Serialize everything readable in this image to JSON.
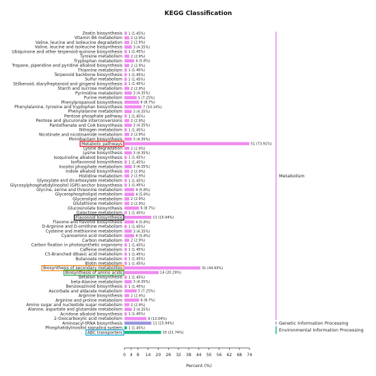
{
  "chart_data": {
    "type": "bar",
    "orientation": "horizontal",
    "title": "KEGG Classification",
    "xlabel": "Percent (%)",
    "ylabel": "",
    "xlim": [
      0,
      74
    ],
    "xticks": [
      0,
      4,
      8,
      14,
      20,
      26,
      32,
      38,
      44,
      50,
      56,
      62,
      68,
      74
    ],
    "grid": false,
    "legend_position": "right",
    "colors": {
      "Metabolism": "#f08cf0",
      "Genetic Information Processing": "#9a96dc",
      "Environmental Information Processing": "#1fba8e"
    },
    "highlight_colors": {
      "red": "#e02020",
      "black": "#111111",
      "orange": "#f08a1c",
      "green": "#2aa84a",
      "cyan": "#1aa8d8"
    },
    "categories": [
      {
        "name": "Zeatin biosynthesis",
        "percent": 1.45,
        "label": "1 (1.45%)",
        "group": "Metabolism"
      },
      {
        "name": "Vitamin B6 metabolism",
        "percent": 2.9,
        "label": "2 (2.9%)",
        "group": "Metabolism"
      },
      {
        "name": "Valine, leucine and isoleucine degradation",
        "percent": 2.9,
        "label": "2 (2.9%)",
        "group": "Metabolism"
      },
      {
        "name": "Valine, leucine and isoleucine biosynthesis",
        "percent": 4.35,
        "label": "3 (4.35%)",
        "group": "Metabolism"
      },
      {
        "name": "Ubiquinone and other terpenoid-quinone biosynthesis",
        "percent": 1.45,
        "label": "1 (1.45%)",
        "group": "Metabolism"
      },
      {
        "name": "Tyrosine metabolism",
        "percent": 2.9,
        "label": "2 (2.9%)",
        "group": "Metabolism"
      },
      {
        "name": "Tryptophan metabolism",
        "percent": 5.8,
        "label": "4 (5.8%)",
        "group": "Metabolism"
      },
      {
        "name": "Tropane, piperidine and pyridine alkaloid biosynthesis",
        "percent": 2.9,
        "label": "2 (2.9%)",
        "group": "Metabolism"
      },
      {
        "name": "Thiamine metabolism",
        "percent": 1.45,
        "label": "1 (1.45%)",
        "group": "Metabolism"
      },
      {
        "name": "Terpenoid backbone biosynthesis",
        "percent": 1.45,
        "label": "1 (1.45%)",
        "group": "Metabolism"
      },
      {
        "name": "Sulfur metabolism",
        "percent": 1.45,
        "label": "1 (1.45%)",
        "group": "Metabolism"
      },
      {
        "name": "Stilbenoid, diarylheptanoid and gingerol biosynthesis",
        "percent": 1.45,
        "label": "1 (1.45%)",
        "group": "Metabolism"
      },
      {
        "name": "Starch and sucrose metabolism",
        "percent": 2.9,
        "label": "2 (2.9%)",
        "group": "Metabolism"
      },
      {
        "name": "Pyrimidine metabolism",
        "percent": 4.35,
        "label": "3 (4.35%)",
        "group": "Metabolism"
      },
      {
        "name": "Purine metabolism",
        "percent": 7.25,
        "label": "5 (7.25%)",
        "group": "Metabolism"
      },
      {
        "name": "Phenylpropanoid biosynthesis",
        "percent": 8.7,
        "label": "6 (8.7%)",
        "group": "Metabolism"
      },
      {
        "name": "Phenylalanine, tyrosine and tryptophan biosynthesis",
        "percent": 10.14,
        "label": "7 (10.14%)",
        "group": "Metabolism"
      },
      {
        "name": "Phenylalanine metabolism",
        "percent": 4.35,
        "label": "3 (4.35%)",
        "group": "Metabolism"
      },
      {
        "name": "Pentose phosphate pathway",
        "percent": 1.45,
        "label": "1 (1.45%)",
        "group": "Metabolism"
      },
      {
        "name": "Pentose and glucuronate interconversions",
        "percent": 2.9,
        "label": "2 (2.9%)",
        "group": "Metabolism"
      },
      {
        "name": "Pantothenate and CoA biosynthesis",
        "percent": 4.35,
        "label": "3 (4.35%)",
        "group": "Metabolism"
      },
      {
        "name": "Nitrogen metabolism",
        "percent": 1.45,
        "label": "1 (1.45%)",
        "group": "Metabolism"
      },
      {
        "name": "Nicotinate and nicotinamide metabolism",
        "percent": 2.9,
        "label": "2 (2.9%)",
        "group": "Metabolism"
      },
      {
        "name": "Monobactam biosynthesis",
        "percent": 4.35,
        "label": "3 (4.35%)",
        "group": "Metabolism"
      },
      {
        "name": "Metabolic pathways",
        "percent": 73.91,
        "label": "51 (73.91%)",
        "group": "Metabolism",
        "highlight": "red"
      },
      {
        "name": "Lysine degradation",
        "percent": 2.9,
        "label": "2 (2.9%)",
        "group": "Metabolism"
      },
      {
        "name": "Lysine biosynthesis",
        "percent": 4.35,
        "label": "3 (4.35%)",
        "group": "Metabolism"
      },
      {
        "name": "Isoquinoline alkaloid biosynthesis",
        "percent": 1.45,
        "label": "1 (1.45%)",
        "group": "Metabolism"
      },
      {
        "name": "Isoflavonoid biosynthesis",
        "percent": 1.45,
        "label": "1 (1.45%)",
        "group": "Metabolism"
      },
      {
        "name": "Inositol phosphate metabolism",
        "percent": 4.35,
        "label": "3 (4.35%)",
        "group": "Metabolism"
      },
      {
        "name": "Indole alkaloid biosynthesis",
        "percent": 2.9,
        "label": "2 (2.9%)",
        "group": "Metabolism"
      },
      {
        "name": "Histidine metabolism",
        "percent": 2.9,
        "label": "2 (2.9%)",
        "group": "Metabolism"
      },
      {
        "name": "Glyoxylate and dicarboxylate metabolism",
        "percent": 1.45,
        "label": "1 (1.45%)",
        "group": "Metabolism"
      },
      {
        "name": "Glycosylphosphatidylinositol (GPI)-anchor biosynthesis",
        "percent": 1.45,
        "label": "1 (1.45%)",
        "group": "Metabolism"
      },
      {
        "name": "Glycine, serine and threonine metabolism",
        "percent": 5.8,
        "label": "4 (5.8%)",
        "group": "Metabolism"
      },
      {
        "name": "Glycerophospholipid metabolism",
        "percent": 5.8,
        "label": "4 (5.8%)",
        "group": "Metabolism"
      },
      {
        "name": "Glycerolipid metabolism",
        "percent": 2.9,
        "label": "2 (2.9%)",
        "group": "Metabolism"
      },
      {
        "name": "Glutathione metabolism",
        "percent": 2.9,
        "label": "2 (2.9%)",
        "group": "Metabolism"
      },
      {
        "name": "Glucosinolate biosynthesis",
        "percent": 8.7,
        "label": "6 (8.7%)",
        "group": "Metabolism"
      },
      {
        "name": "Galactose metabolism",
        "percent": 1.45,
        "label": "1 (1.45%)",
        "group": "Metabolism"
      },
      {
        "name": "Flavonoid biosynthesis",
        "percent": 15.94,
        "label": "11 (15.94%)",
        "group": "Metabolism",
        "highlight": "black"
      },
      {
        "name": "Flavone and flavonol biosynthesis",
        "percent": 5.8,
        "label": "4 (5.8%)",
        "group": "Metabolism"
      },
      {
        "name": "D-Arginine and D-ornithine metabolism",
        "percent": 1.45,
        "label": "1 (1.45%)",
        "group": "Metabolism"
      },
      {
        "name": "Cysteine and methionine metabolism",
        "percent": 4.35,
        "label": "3 (4.35%)",
        "group": "Metabolism"
      },
      {
        "name": "Cyanoamino acid metabolism",
        "percent": 5.8,
        "label": "4 (5.8%)",
        "group": "Metabolism"
      },
      {
        "name": "Carbon metabolism",
        "percent": 2.9,
        "label": "2 (2.9%)",
        "group": "Metabolism"
      },
      {
        "name": "Carbon fixation in photosynthetic organisms",
        "percent": 1.45,
        "label": "1 (1.45%)",
        "group": "Metabolism"
      },
      {
        "name": "Caffeine metabolism",
        "percent": 1.45,
        "label": "1 (1.45%)",
        "group": "Metabolism"
      },
      {
        "name": "C5-Branched dibasic acid metabolism",
        "percent": 1.45,
        "label": "1 (1.45%)",
        "group": "Metabolism"
      },
      {
        "name": "Butanoate metabolism",
        "percent": 1.45,
        "label": "1 (1.45%)",
        "group": "Metabolism"
      },
      {
        "name": "Biotin metabolism",
        "percent": 1.45,
        "label": "1 (1.45%)",
        "group": "Metabolism"
      },
      {
        "name": "Biosynthesis of secondary metabolites",
        "percent": 44.93,
        "label": "31 (44.93%)",
        "group": "Metabolism",
        "highlight": "orange"
      },
      {
        "name": "Biosynthesis of amino acids",
        "percent": 20.29,
        "label": "14 (20.29%)",
        "group": "Metabolism",
        "highlight": "green"
      },
      {
        "name": "Betalain biosynthesis",
        "percent": 1.45,
        "label": "1 (1.45%)",
        "group": "Metabolism"
      },
      {
        "name": "beta-Alanine metabolism",
        "percent": 4.35,
        "label": "3 (4.35%)",
        "group": "Metabolism"
      },
      {
        "name": "Benzoxazinoid biosynthesis",
        "percent": 1.45,
        "label": "1 (1.45%)",
        "group": "Metabolism"
      },
      {
        "name": "Ascorbate and aldarate metabolism",
        "percent": 7.25,
        "label": "5 (7.25%)",
        "group": "Metabolism"
      },
      {
        "name": "Arginine biosynthesis",
        "percent": 2.9,
        "label": "2 (2.9%)",
        "group": "Metabolism"
      },
      {
        "name": "Arginine and proline metabolism",
        "percent": 8.7,
        "label": "6 (8.7%)",
        "group": "Metabolism"
      },
      {
        "name": "Amino sugar and nucleotide sugar metabolism",
        "percent": 2.9,
        "label": "2 (2.9%)",
        "group": "Metabolism"
      },
      {
        "name": "Alanine, aspartate and glutamate metabolism",
        "percent": 4.35,
        "label": "3 (4.35%)",
        "group": "Metabolism"
      },
      {
        "name": "Acridone alkaloid biosynthesis",
        "percent": 1.45,
        "label": "1 (1.45%)",
        "group": "Metabolism"
      },
      {
        "name": "2-Oxocarboxylic acid metabolism",
        "percent": 13.04,
        "label": "9 (13.04%)",
        "group": "Metabolism"
      },
      {
        "name": "Aminoacyl-tRNA biosynthesis",
        "percent": 15.94,
        "label": "11 (15.94%)",
        "group": "Genetic Information Processing"
      },
      {
        "name": "Phosphatidylinositol signaling system",
        "percent": 1.45,
        "label": "1 (1.45%)",
        "group": "Environmental Information Processing"
      },
      {
        "name": "ABC transporters",
        "percent": 21.74,
        "label": "15 (21.74%)",
        "group": "Environmental Information Processing",
        "highlight": "cyan"
      }
    ],
    "legend": [
      {
        "label": "Metabolism",
        "color": "#f08cf0"
      },
      {
        "label": "Genetic Information Processing",
        "color": "#9a96dc"
      },
      {
        "label": "Environmental Information Processing",
        "color": "#1fba8e"
      }
    ]
  }
}
